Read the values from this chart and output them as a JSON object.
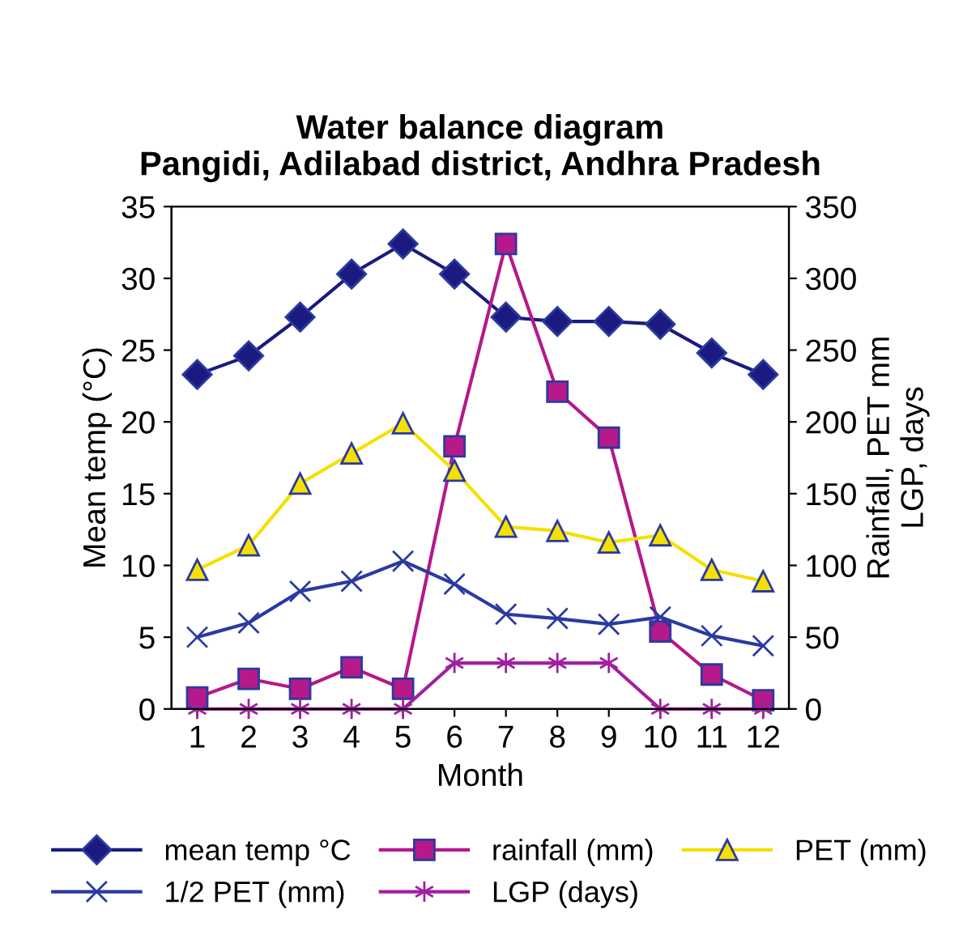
{
  "chart_data": {
    "type": "line",
    "title": "Water balance diagram\nPangidi, Adilabad district, Andhra Pradesh",
    "xlabel": "Month",
    "ylabel": "Mean temp (°C)",
    "y2label": "Rainfall, PET mm\nLGP, days",
    "categories": [
      "1",
      "2",
      "3",
      "4",
      "5",
      "6",
      "7",
      "8",
      "9",
      "10",
      "11",
      "12"
    ],
    "ylim": [
      0,
      35
    ],
    "yticks": [
      0,
      5,
      10,
      15,
      20,
      25,
      30,
      35
    ],
    "y2lim": [
      0,
      350
    ],
    "y2ticks": [
      0,
      50,
      100,
      150,
      200,
      250,
      300,
      350
    ],
    "grid": false,
    "legend": "bottom",
    "series": [
      {
        "name": "mean temp °C",
        "color": "#1a1a80",
        "marker": "diamond",
        "values": [
          23.3,
          24.6,
          27.3,
          30.3,
          32.4,
          30.3,
          27.3,
          27.0,
          27.0,
          26.8,
          24.8,
          23.3
        ]
      },
      {
        "name": "rainfall (mm)",
        "color": "#b5198a",
        "marker": "square",
        "axis": "y2",
        "values": [
          8,
          21,
          14,
          29,
          14,
          183,
          324,
          221,
          189,
          54,
          24,
          6
        ]
      },
      {
        "name": "PET (mm)",
        "color": "#f5e000",
        "marker": "triangle",
        "axis": "y2",
        "values": [
          97,
          114,
          157,
          178,
          199,
          166,
          127,
          124,
          116,
          121,
          97,
          89
        ]
      },
      {
        "name": "1/2 PET (mm)",
        "color": "#2a3aa0",
        "marker": "cross",
        "axis": "y2",
        "values": [
          50,
          60,
          82,
          89,
          103,
          87,
          66,
          63,
          59,
          64,
          51,
          44
        ]
      },
      {
        "name": "LGP (days)",
        "color": "#a020a0",
        "marker": "cross",
        "axis": "y2",
        "values": [
          0,
          0,
          0,
          0,
          0,
          32,
          32,
          32,
          32,
          0,
          0,
          0
        ]
      }
    ]
  }
}
